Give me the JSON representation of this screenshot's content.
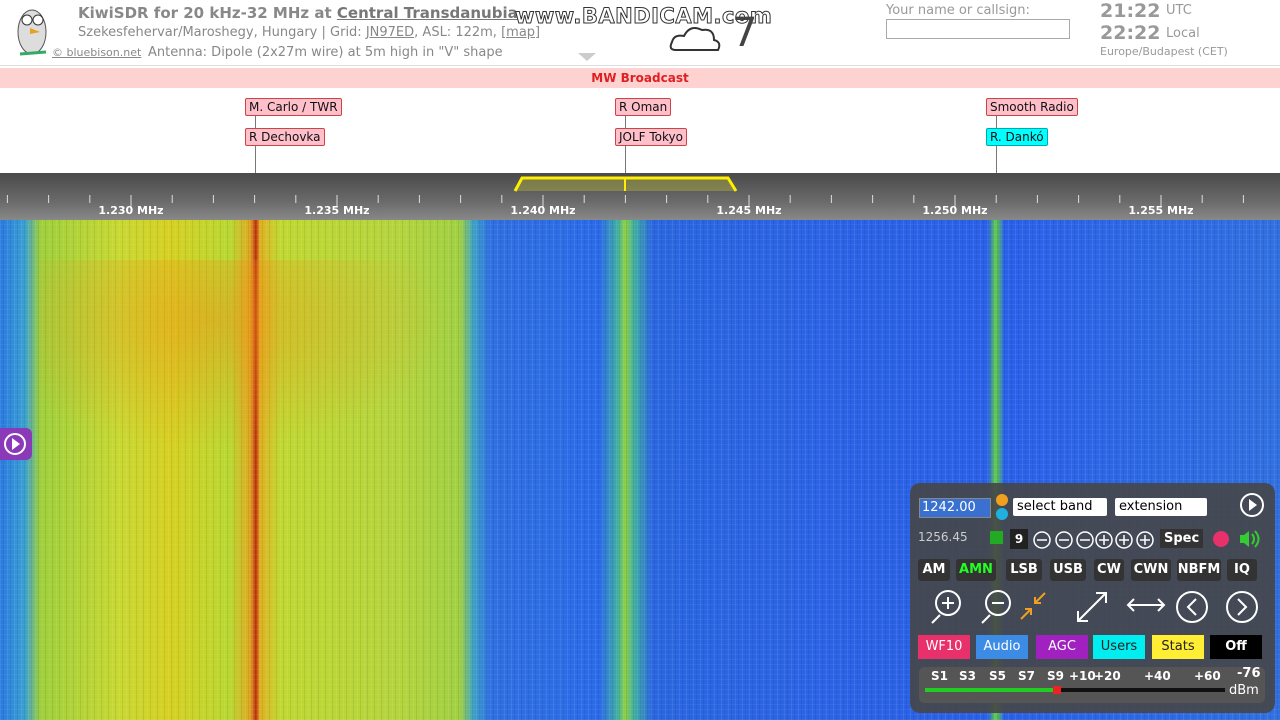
{
  "header": {
    "title": "KiwiSDR for 20 kHz-32 MHz at",
    "site": "Central Transdanubia",
    "location": "Szekesfehervar/Maroshegy, Hungary | Grid:",
    "grid": "JN97ED",
    "asl": ", ASL: 122m,",
    "map": "[map]",
    "credit": "© bluebison.net",
    "antenna": "Antenna: Dipole (2x27m wire) at 5m high in \"V\" shape"
  },
  "watermark": "www.BANDICAM.com",
  "weather": "7",
  "login": {
    "label": "Your name or callsign:"
  },
  "clock": {
    "utc": "21:22",
    "utc_label": "UTC",
    "local": "22:22",
    "local_label": "Local",
    "zone": "Europe/Budapest (CET)"
  },
  "band": "MW Broadcast",
  "stations": [
    {
      "top": "M. Carlo / TWR",
      "bottom": "R Dechovka"
    },
    {
      "top": "R Oman",
      "bottom": "JOLF Tokyo"
    },
    {
      "top": "Smooth Radio",
      "bottom": "R. Dankó"
    }
  ],
  "scale": [
    "1.230 MHz",
    "1.235 MHz",
    "1.240 MHz",
    "1.245 MHz",
    "1.250 MHz",
    "1.255 MHz"
  ],
  "panel": {
    "frequency": "1242.00",
    "band_select": "select band",
    "extension": "extension",
    "freq_max": "1256.45",
    "zoom": "9",
    "spec": "Spec",
    "modes": [
      "AM",
      "AMN",
      "LSB",
      "USB",
      "CW",
      "CWN",
      "NBFM",
      "IQ"
    ],
    "buttons": [
      "WF10",
      "Audio",
      "AGC",
      "Users",
      "Stats",
      "Off"
    ],
    "smeter": {
      "scale": [
        "S1",
        "S3",
        "S5",
        "S7",
        "S9",
        "+10",
        "+20",
        "+40",
        "+60"
      ],
      "reading": "-76",
      "unit": "dBm"
    }
  }
}
